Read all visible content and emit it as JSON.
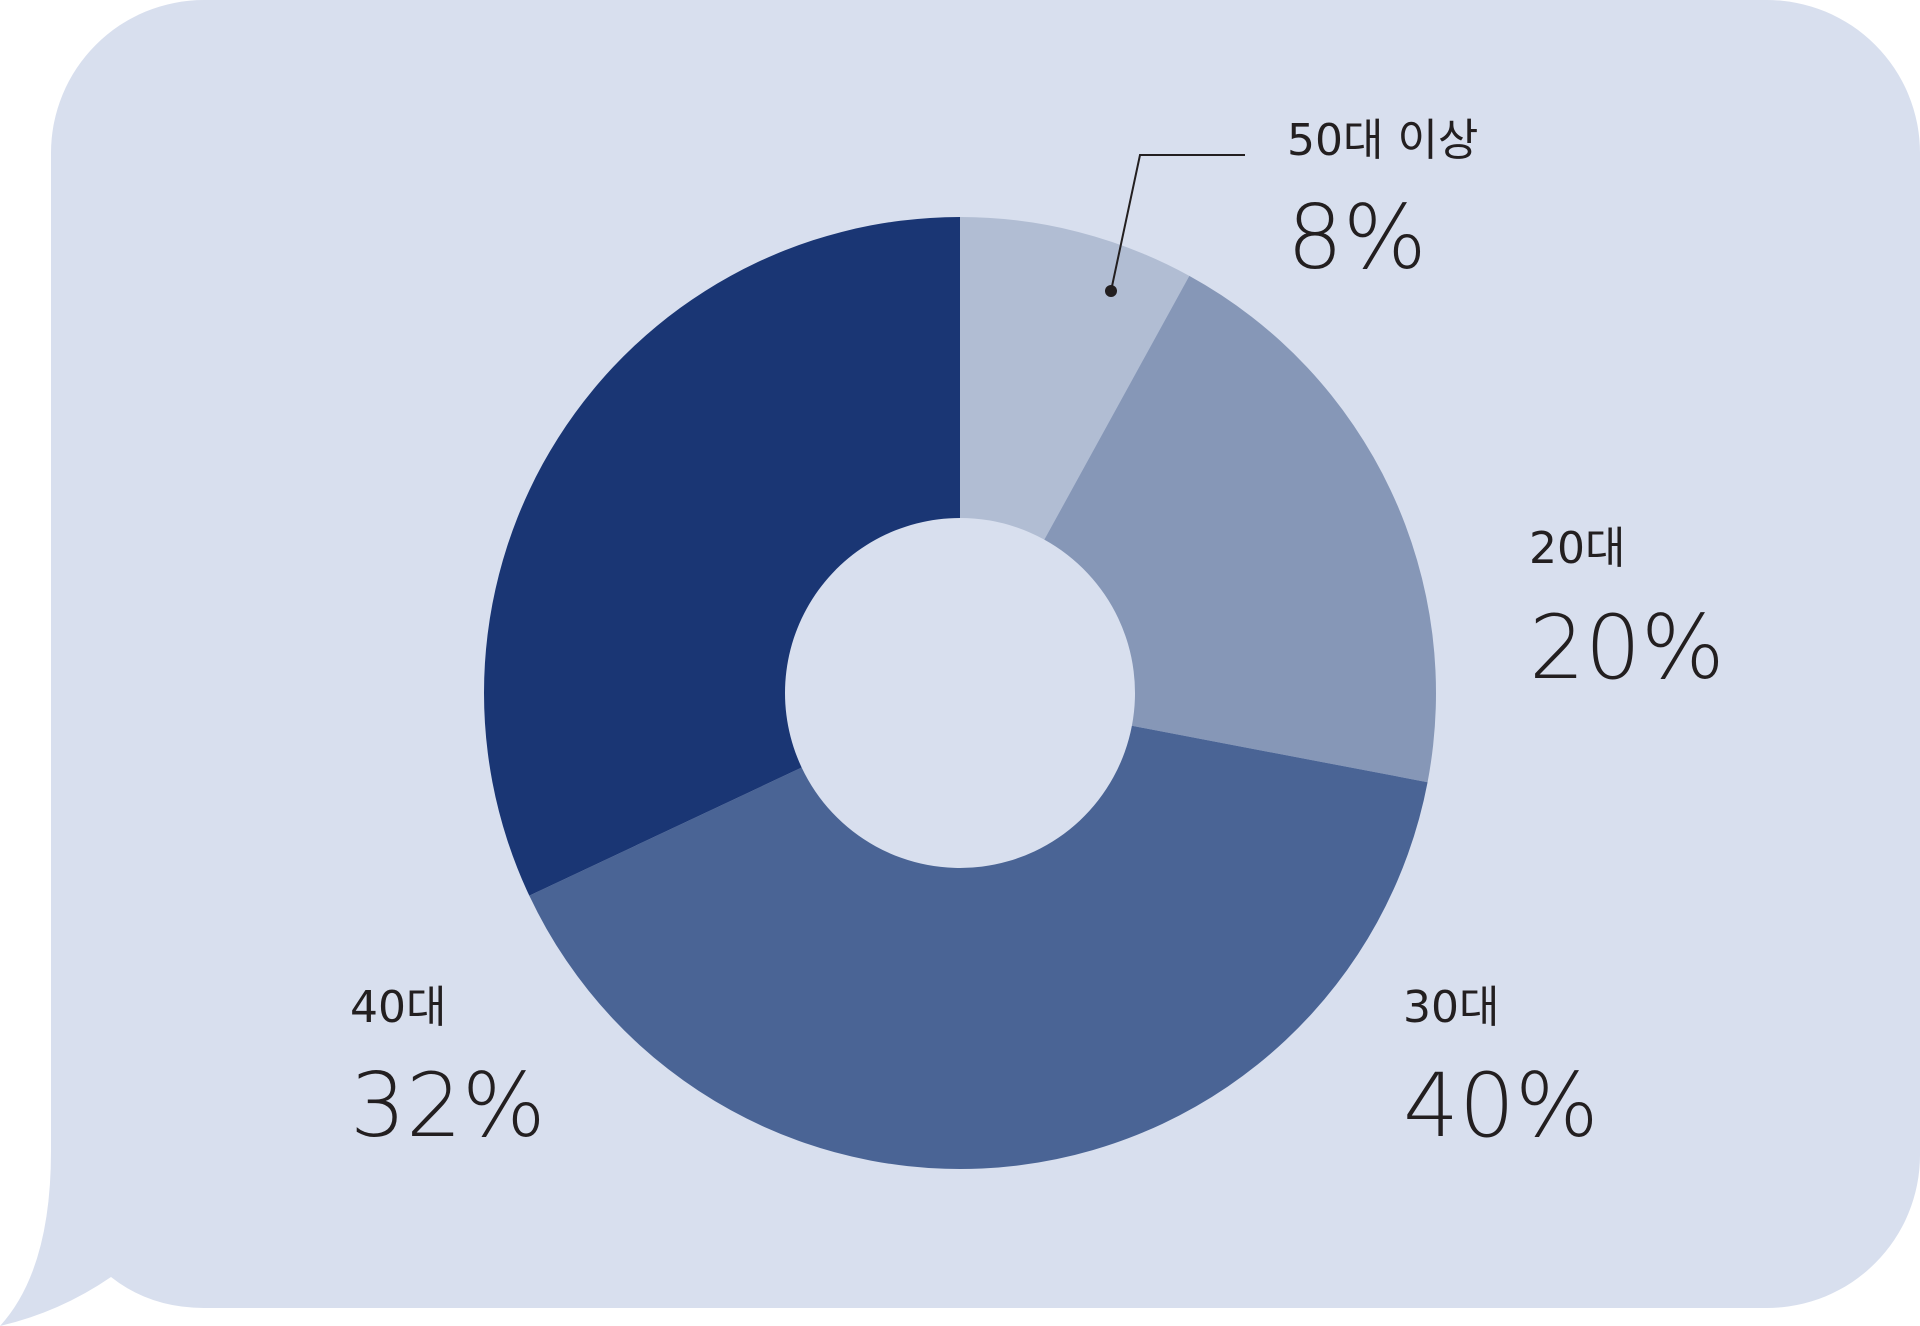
{
  "chart_data": {
    "type": "donut",
    "categories": [
      "50대 이상",
      "20대",
      "30대",
      "40대"
    ],
    "values": [
      8,
      20,
      40,
      32
    ],
    "value_labels": [
      "8%",
      "20%",
      "40%",
      "32%"
    ],
    "colors": [
      "#b1bdd3",
      "#8697b7",
      "#4a6495",
      "#1a3674"
    ]
  }
}
